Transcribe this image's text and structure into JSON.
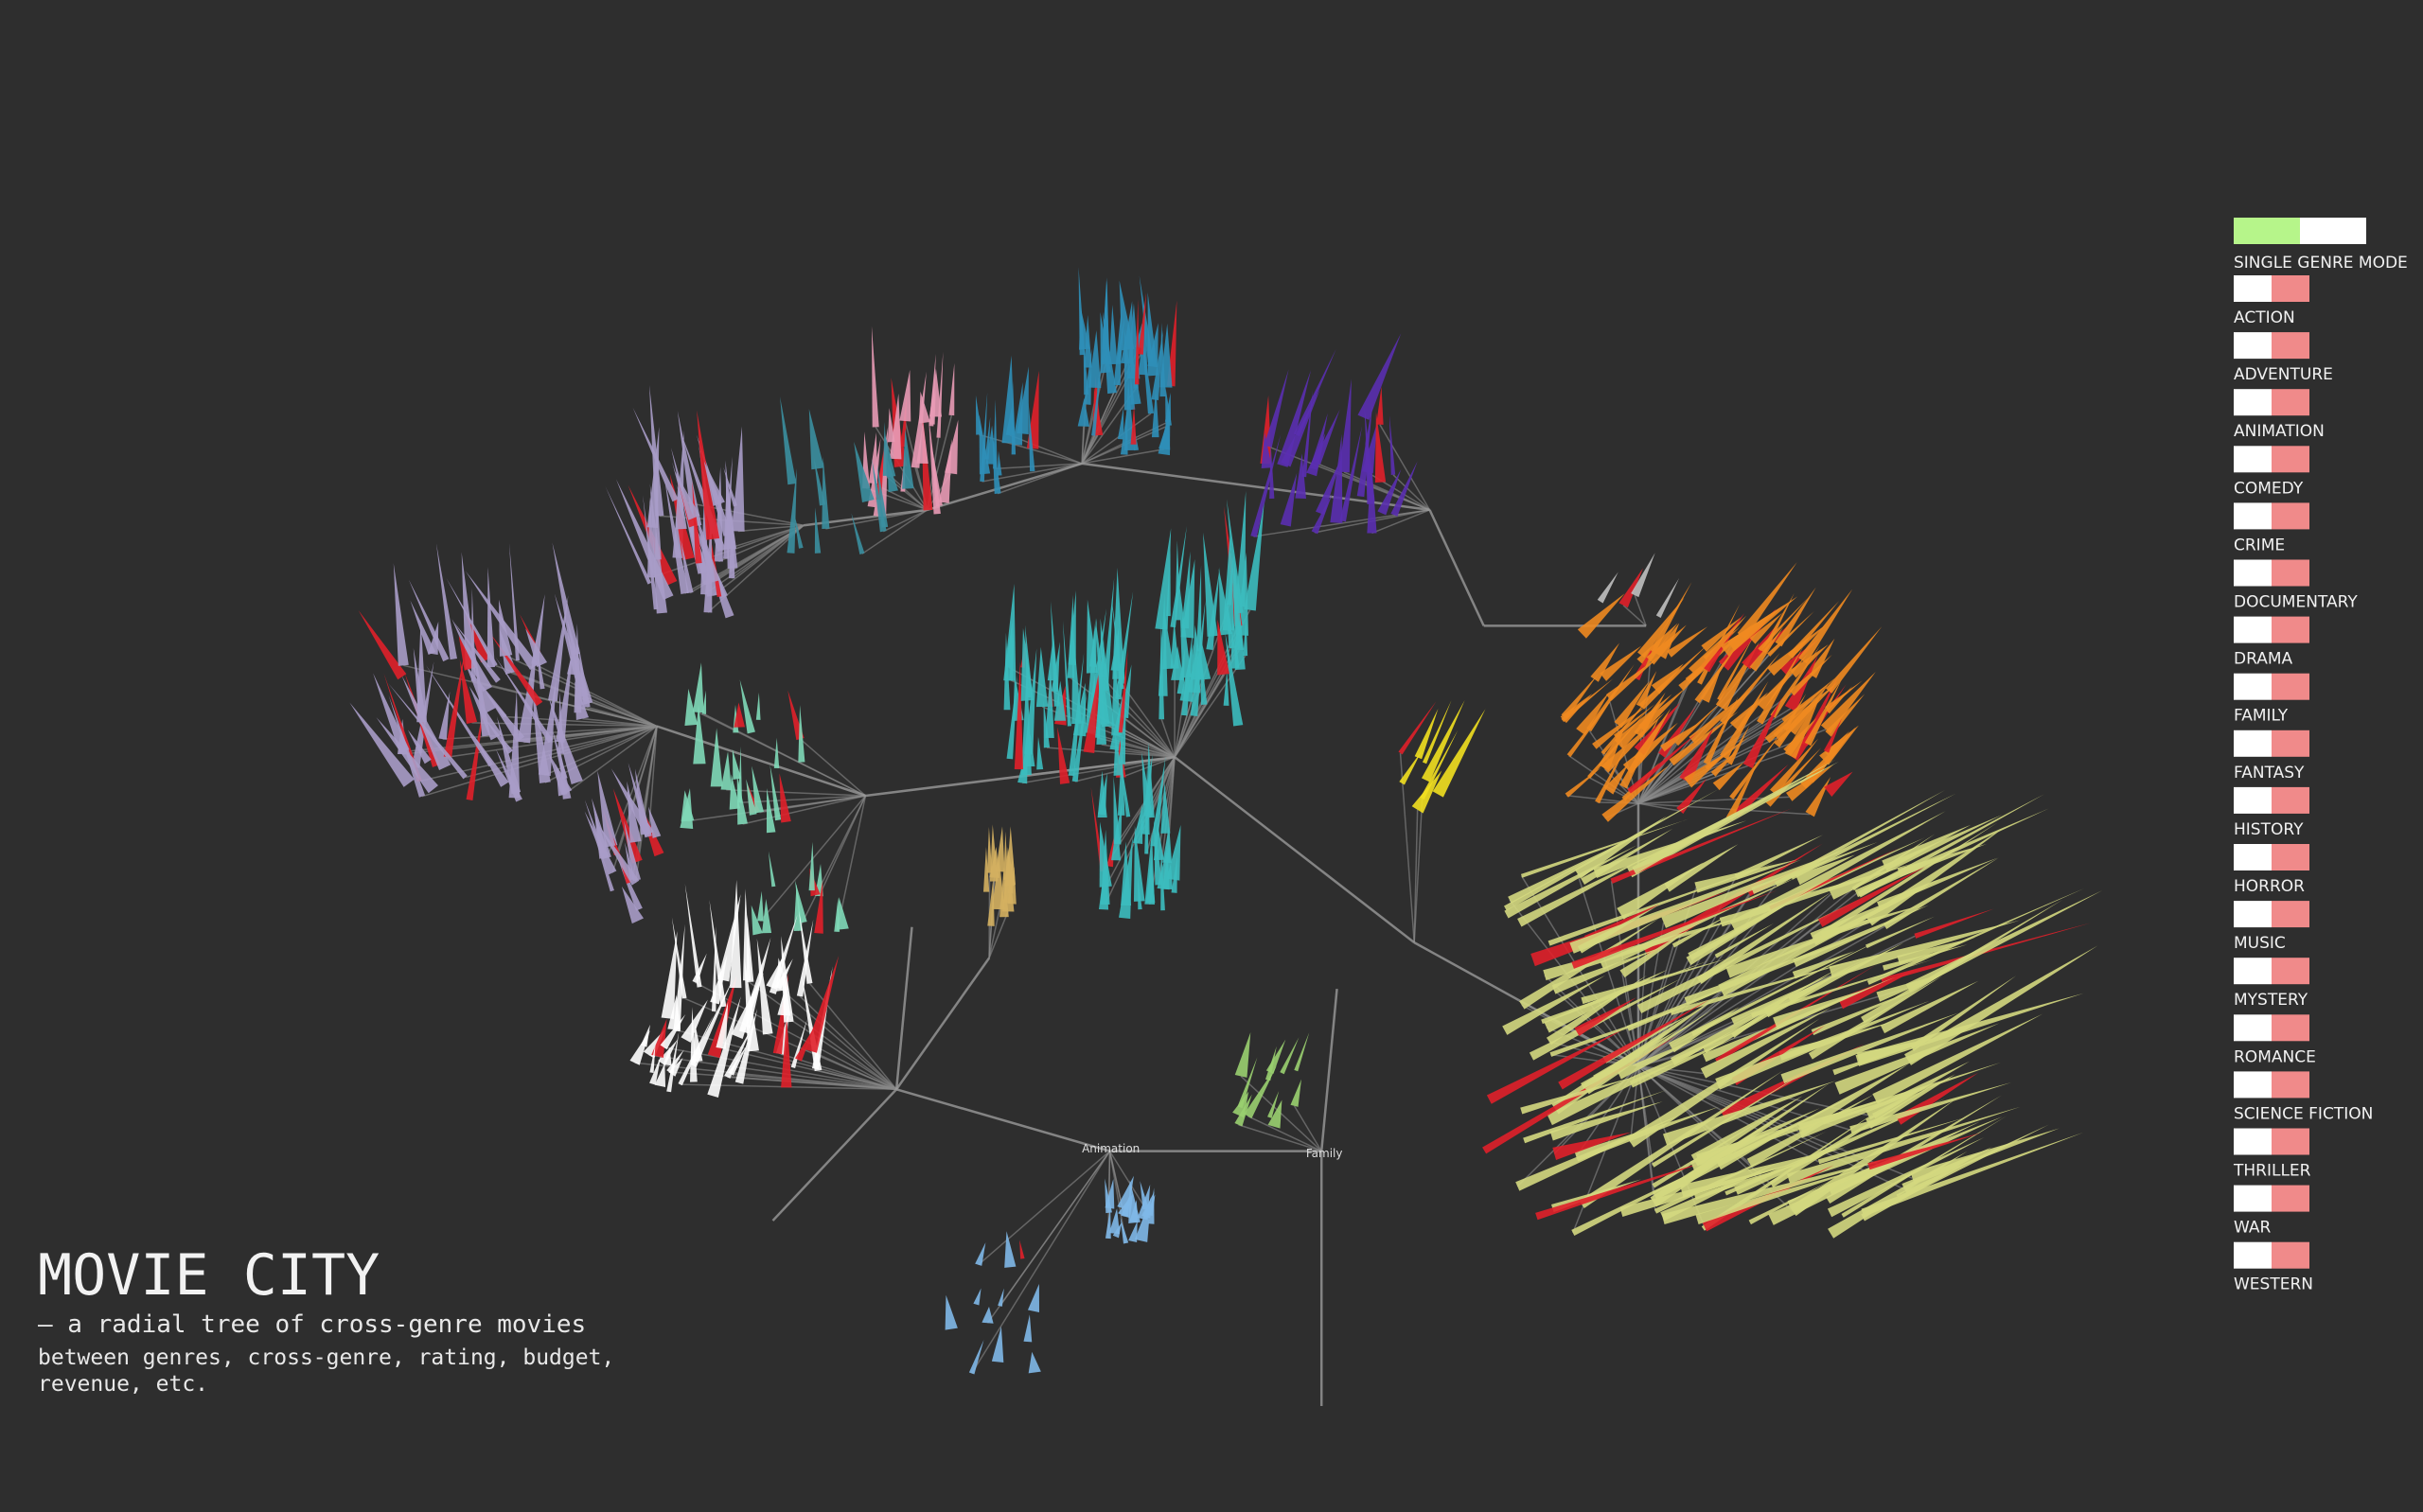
{
  "header": {
    "title": "MOVIE CITY",
    "subtitle": "– a radial tree of cross-genre movies",
    "description": [
      "between genres, cross-genre, rating, budget,",
      "revenue, etc."
    ]
  },
  "controls": {
    "mode_label": "SINGLE GENRE MODE",
    "genres": [
      "ACTION",
      "ADVENTURE",
      "ANIMATION",
      "COMEDY",
      "CRIME",
      "DOCUMENTARY",
      "DRAMA",
      "FAMILY",
      "FANTASY",
      "HISTORY",
      "HORROR",
      "MUSIC",
      "MYSTERY",
      "ROMANCE",
      "SCIENCE FICTION",
      "THRILLER",
      "WAR",
      "WESTERN"
    ]
  },
  "tree": {
    "nodes": [
      {
        "label": "Animation"
      },
      {
        "label": "Family"
      }
    ]
  }
}
